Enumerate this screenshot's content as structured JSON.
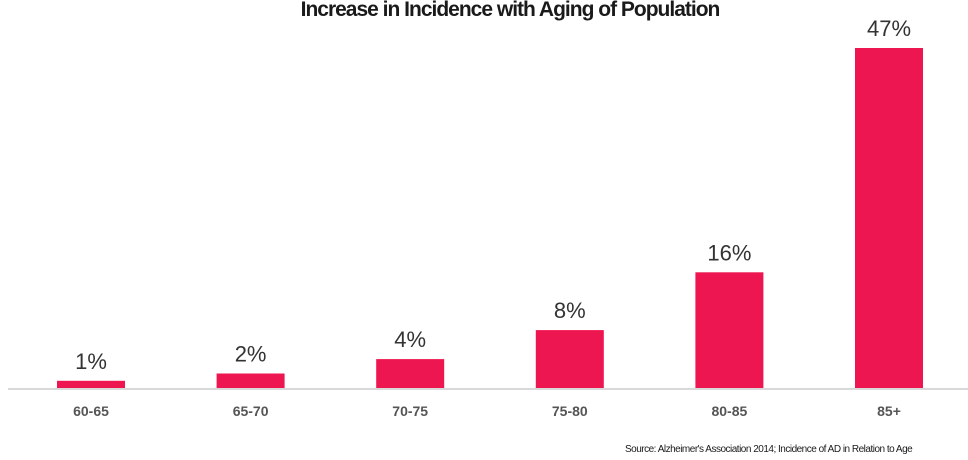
{
  "chart_data": {
    "type": "bar",
    "title": "Increase in Incidence with Aging of Population",
    "categories": [
      "60-65",
      "65-70",
      "70-75",
      "75-80",
      "80-85",
      "85+"
    ],
    "values": [
      1,
      2,
      4,
      8,
      16,
      47
    ],
    "data_labels": [
      "1%",
      "2%",
      "4%",
      "8%",
      "16%",
      "47%"
    ],
    "xlabel": "",
    "ylabel": "",
    "ylim": [
      0,
      47
    ],
    "grid": false,
    "legend": "none",
    "bar_color": "#ee1650",
    "axis_color": "#d9d9d9",
    "source": "Source: Alzheimer's Association 2014; Incidence of AD in Relation to Age"
  }
}
